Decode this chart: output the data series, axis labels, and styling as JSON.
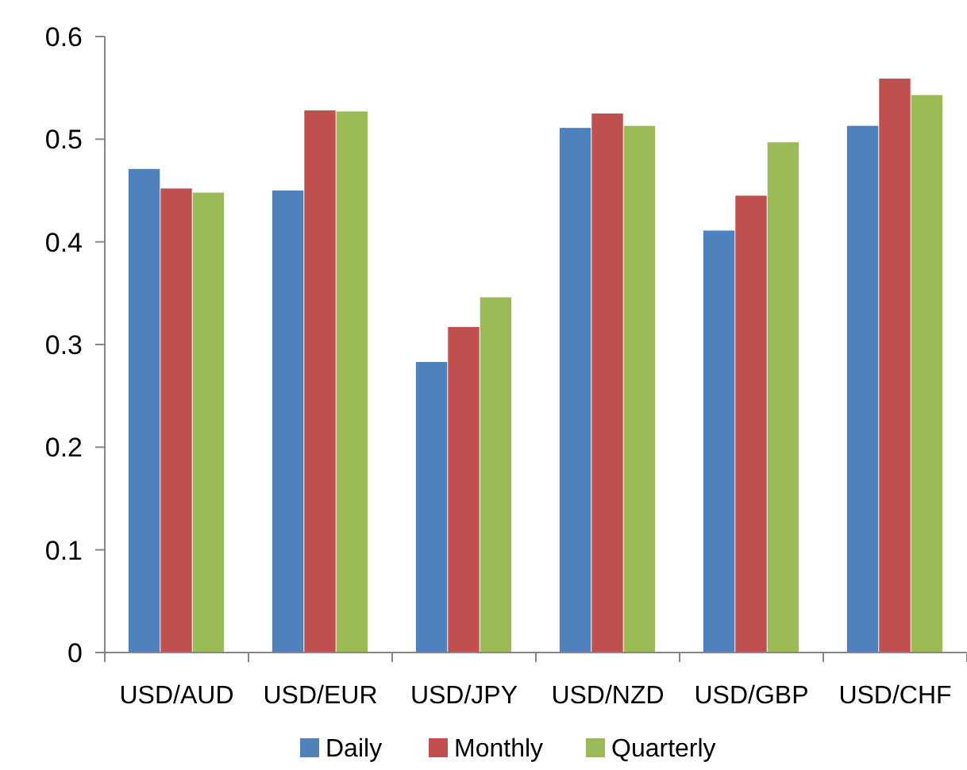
{
  "chart_data": {
    "type": "bar",
    "categories": [
      "USD/AUD",
      "USD/EUR",
      "USD/JPY",
      "USD/NZD",
      "USD/GBP",
      "USD/CHF"
    ],
    "series": [
      {
        "name": "Daily",
        "color": "#4f81bd",
        "values": [
          0.471,
          0.45,
          0.283,
          0.511,
          0.411,
          0.513
        ]
      },
      {
        "name": "Monthly",
        "color": "#c0504d",
        "values": [
          0.452,
          0.528,
          0.317,
          0.525,
          0.445,
          0.559
        ]
      },
      {
        "name": "Quarterly",
        "color": "#9bbb59",
        "values": [
          0.448,
          0.527,
          0.346,
          0.513,
          0.497,
          0.543
        ]
      }
    ],
    "ylim": [
      0,
      0.6
    ],
    "yticks": [
      0,
      0.1,
      0.2,
      0.3,
      0.4,
      0.5,
      0.6
    ],
    "legend": "bottom"
  }
}
